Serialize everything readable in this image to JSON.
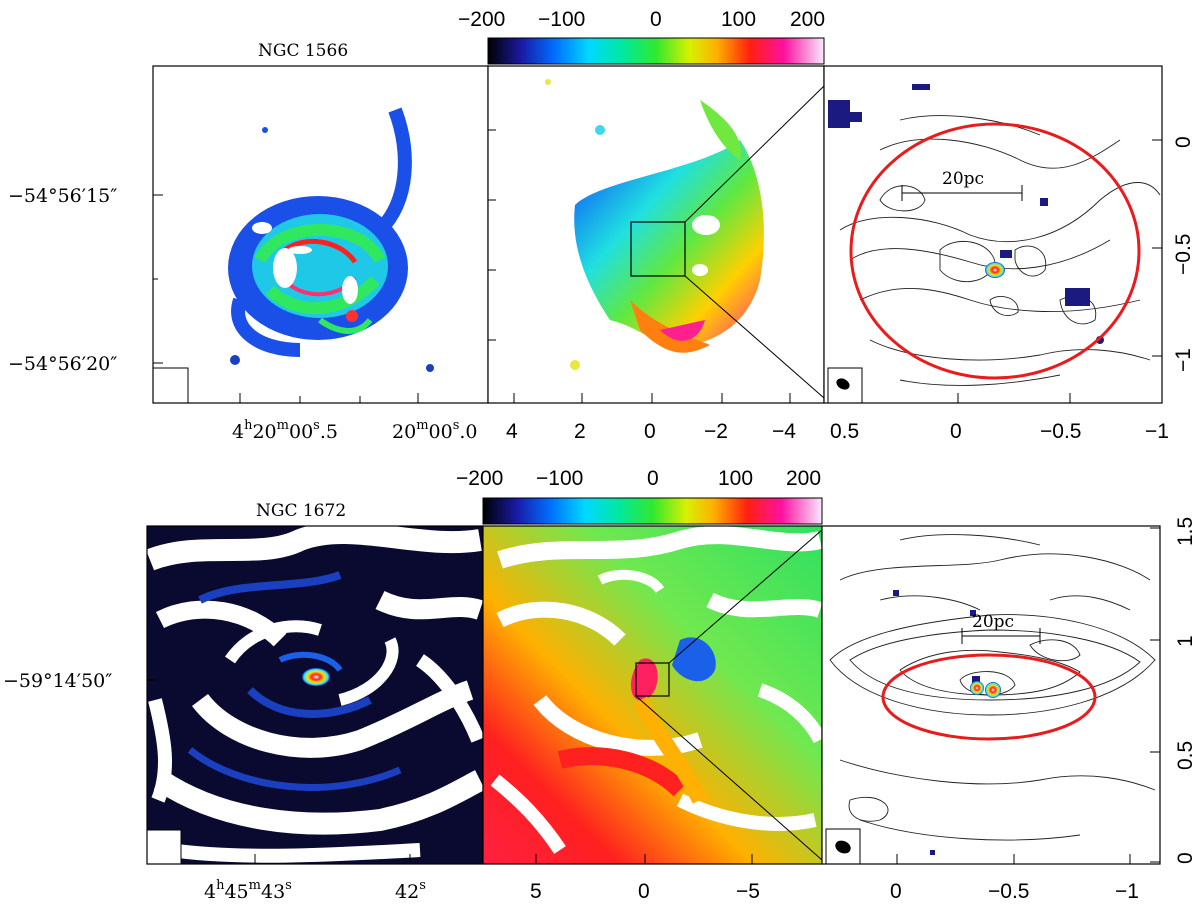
{
  "figure": {
    "top": {
      "galaxy": "NGC 1566",
      "colorbar_ticks": [
        "−200",
        "−100",
        "0",
        "100",
        "200"
      ],
      "ra_labels": [
        {
          "h": "4",
          "hs": "h",
          "m": "20",
          "ms": "m",
          "s": "00",
          "ss": "s",
          "f": ".5"
        },
        {
          "m": "20",
          "ms": "m",
          "s": "00",
          "ss": "s",
          "f": ".0"
        }
      ],
      "dec_labels": [
        "−54°56′15″",
        "−54°56′20″"
      ],
      "middle_x_ticks": [
        "4",
        "2",
        "0",
        "−2",
        "−4"
      ],
      "right_x_ticks": [
        "0.5",
        "0",
        "−0.5",
        "−1"
      ],
      "right_y_ticks": [
        "0",
        "−0.5",
        "−1"
      ],
      "scale_bar": "20pc"
    },
    "bottom": {
      "galaxy": "NGC 1672",
      "colorbar_ticks": [
        "−200",
        "−100",
        "0",
        "100",
        "200"
      ],
      "ra_labels": [
        {
          "h": "4",
          "hs": "h",
          "m": "45",
          "ms": "m",
          "s": "43",
          "ss": "s"
        },
        {
          "s": "42",
          "ss": "s"
        }
      ],
      "dec_labels": [
        "−59°14′50″"
      ],
      "middle_x_ticks": [
        "5",
        "0",
        "−5"
      ],
      "right_x_ticks": [
        "0",
        "−0.5",
        "−1"
      ],
      "right_y_ticks": [
        "1.5",
        "1",
        "0.5",
        "0"
      ],
      "scale_bar": "20pc"
    }
  }
}
